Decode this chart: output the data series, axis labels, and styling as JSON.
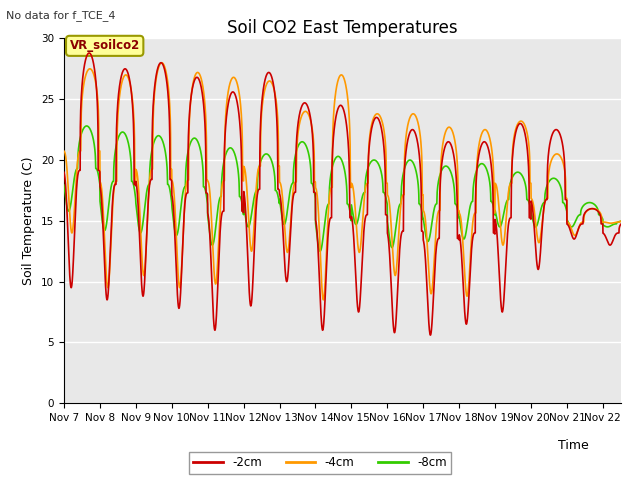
{
  "title": "Soil CO2 East Temperatures",
  "no_data_text": "No data for f_TCE_4",
  "ylabel": "Soil Temperature (C)",
  "xlabel": "Time",
  "ylim": [
    0,
    30
  ],
  "yticks": [
    0,
    5,
    10,
    15,
    20,
    25,
    30
  ],
  "plot_bg_color": "#e8e8e8",
  "fig_bg_color": "#ffffff",
  "legend_box_label": "VR_soilco2",
  "legend_box_color": "#ffff99",
  "legend_box_edge": "#999900",
  "line_colors": [
    "#cc0000",
    "#ff9900",
    "#33cc00"
  ],
  "line_labels": [
    "-2cm",
    "-4cm",
    "-8cm"
  ],
  "x_tick_labels": [
    "Nov 7",
    "Nov 8",
    "Nov 9",
    "Nov 10",
    "Nov 11",
    "Nov 12",
    "Nov 13",
    "Nov 14",
    "Nov 15",
    "Nov 16",
    "Nov 17",
    "Nov 18",
    "Nov 19",
    "Nov 20",
    "Nov 21",
    "Nov 22"
  ],
  "title_fontsize": 12,
  "axis_label_fontsize": 9,
  "tick_fontsize": 7.5
}
